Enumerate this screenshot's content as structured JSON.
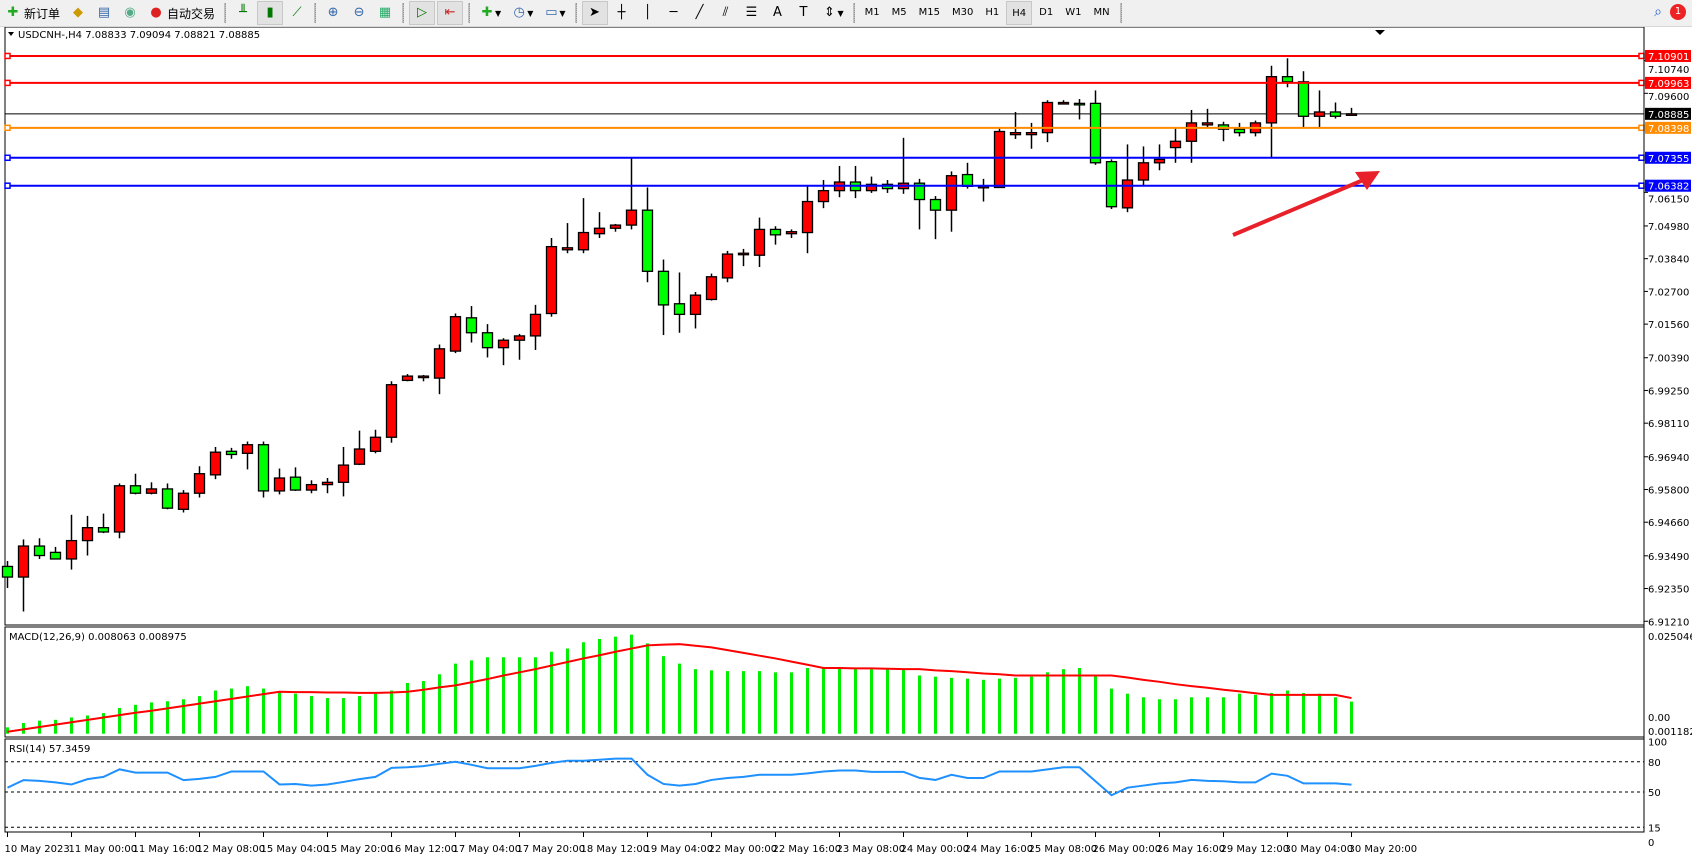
{
  "toolbar": {
    "new_order": "新订单",
    "auto_trading": "自动交易",
    "timeframes": [
      "M1",
      "M5",
      "M15",
      "M30",
      "H1",
      "H4",
      "D1",
      "W1",
      "MN"
    ],
    "active_timeframe": "H4",
    "notification_count": "1",
    "icons": [
      "new-order-icon",
      "market-watch-icon",
      "navigator-icon",
      "signals-icon",
      "auto-trading-icon",
      "bar-chart-icon",
      "candlestick-icon",
      "line-chart-icon",
      "zoom-in-icon",
      "zoom-out-icon",
      "tile-windows-icon",
      "chart-shift-icon",
      "auto-scroll-icon",
      "indicators-icon",
      "periods-icon",
      "templates-icon",
      "cursor-icon",
      "crosshair-icon",
      "vertical-line-icon",
      "horizontal-line-icon",
      "trendline-icon",
      "fibonacci-icon",
      "fibo-fan-icon",
      "text-icon",
      "text-label-icon",
      "arrows-icon",
      "search-icon",
      "chat-icon"
    ]
  },
  "chart": {
    "header": "USDCNH-,H4  7.08833 7.09094 7.08821 7.08885",
    "colors": {
      "bull": "#ff0000",
      "bear": "#00ff00",
      "resistance": "#ff0000",
      "pivot": "#ff8c00",
      "support": "#0000ff",
      "signal": "#ff0000",
      "histogram": "#00ee00",
      "rsi": "#1e90ff",
      "arrow": "#e8202a"
    },
    "price_axis_ticks": [
      "7.10740",
      "7.09600",
      "7.06150",
      "7.04980",
      "7.03840",
      "7.02700",
      "7.01560",
      "7.00390",
      "6.99250",
      "6.98110",
      "6.96940",
      "6.95800",
      "6.94660",
      "6.93490",
      "6.92350",
      "6.91210"
    ],
    "horizontal_lines": [
      {
        "price": "7.10901",
        "color": "#ff0000"
      },
      {
        "price": "7.09963",
        "color": "#ff0000"
      },
      {
        "price": "7.08398",
        "color": "#ff8c00"
      },
      {
        "price": "7.07355",
        "color": "#0000ff"
      },
      {
        "price": "7.06382",
        "color": "#0000ff"
      }
    ],
    "bid_price": "7.08885",
    "macd_label": "MACD(12,26,9) 0.008063 0.008975",
    "macd_axis": [
      "0.025046",
      "0.00",
      "0.001182"
    ],
    "rsi_label": "RSI(14) 57.3459",
    "rsi_axis": [
      "100",
      "80",
      "50",
      "15",
      "0"
    ],
    "time_labels": [
      "10 May 2023",
      "11 May 00:00",
      "11 May 16:00",
      "12 May 08:00",
      "15 May 04:00",
      "15 May 20:00",
      "16 May 12:00",
      "17 May 04:00",
      "17 May 20:00",
      "18 May 12:00",
      "19 May 04:00",
      "22 May 00:00",
      "22 May 16:00",
      "23 May 08:00",
      "24 May 00:00",
      "24 May 16:00",
      "25 May 08:00",
      "26 May 00:00",
      "26 May 16:00",
      "29 May 12:00",
      "30 May 04:00",
      "30 May 20:00"
    ]
  },
  "chart_data": {
    "type": "candlestick",
    "symbol": "USDCNH-",
    "timeframe": "H4",
    "ylim": [
      6.9108,
      7.1191
    ],
    "ohlc": [
      [
        6.9312,
        6.9331,
        6.9237,
        6.9275
      ],
      [
        6.9275,
        6.9406,
        6.9155,
        6.9383
      ],
      [
        6.9383,
        6.941,
        6.9338,
        6.935
      ],
      [
        6.9361,
        6.938,
        6.9338,
        6.9338
      ],
      [
        6.9338,
        6.9492,
        6.9301,
        6.9402
      ],
      [
        6.9402,
        6.9488,
        6.935,
        6.9447
      ],
      [
        6.9447,
        6.9496,
        6.9428,
        6.9432
      ],
      [
        6.9432,
        6.9601,
        6.941,
        6.9593
      ],
      [
        6.9593,
        6.9635,
        6.9563,
        6.9567
      ],
      [
        6.9567,
        6.9605,
        6.9563,
        6.9582
      ],
      [
        6.9582,
        6.9601,
        6.9511,
        6.9515
      ],
      [
        6.9511,
        6.9578,
        6.95,
        6.9567
      ],
      [
        6.9567,
        6.9661,
        6.9552,
        6.9635
      ],
      [
        6.9631,
        6.9728,
        6.9616,
        6.971
      ],
      [
        6.9713,
        6.9725,
        6.9687,
        6.9702
      ],
      [
        6.9706,
        6.9747,
        6.965,
        6.9736
      ],
      [
        6.9736,
        6.9747,
        6.9552,
        6.9575
      ],
      [
        6.9575,
        6.9653,
        6.9563,
        6.962
      ],
      [
        6.9623,
        6.9657,
        6.9575,
        6.9578
      ],
      [
        6.9578,
        6.9612,
        6.9567,
        6.9597
      ],
      [
        6.9597,
        6.962,
        6.9567,
        6.9605
      ],
      [
        6.9605,
        6.9728,
        6.9556,
        6.9665
      ],
      [
        6.9668,
        6.9785,
        6.9665,
        6.9721
      ],
      [
        6.9713,
        6.9788,
        6.9706,
        6.9762
      ],
      [
        6.9762,
        6.9957,
        6.9743,
        6.9945
      ],
      [
        6.996,
        6.9982,
        6.9957,
        6.9975
      ],
      [
        6.9971,
        6.9979,
        6.9957,
        6.9975
      ],
      [
        6.9968,
        7.0085,
        6.9912,
        7.007
      ],
      [
        7.0062,
        7.0193,
        7.0055,
        7.0182
      ],
      [
        7.0178,
        7.0219,
        7.0092,
        7.0126
      ],
      [
        7.0126,
        7.0156,
        7.004,
        7.0074
      ],
      [
        7.0074,
        7.0107,
        7.0013,
        7.01
      ],
      [
        7.01,
        7.0122,
        7.0032,
        7.0115
      ],
      [
        7.0115,
        7.0223,
        7.0066,
        7.019
      ],
      [
        7.0193,
        7.0456,
        7.0182,
        7.0426
      ],
      [
        7.0415,
        7.0508,
        7.0403,
        7.0422
      ],
      [
        7.0415,
        7.0595,
        7.0403,
        7.0475
      ],
      [
        7.0471,
        7.0546,
        7.0456,
        7.049
      ],
      [
        7.049,
        7.0505,
        7.0478,
        7.0501
      ],
      [
        7.0501,
        7.0733,
        7.0486,
        7.0553
      ],
      [
        7.0553,
        7.0632,
        7.0302,
        7.034
      ],
      [
        7.034,
        7.0381,
        7.0118,
        7.0223
      ],
      [
        7.0227,
        7.0336,
        7.0126,
        7.019
      ],
      [
        7.019,
        7.0268,
        7.0141,
        7.0257
      ],
      [
        7.0242,
        7.0332,
        7.0238,
        7.0321
      ],
      [
        7.0317,
        7.0411,
        7.0302,
        7.04
      ],
      [
        7.04,
        7.0418,
        7.0358,
        7.0403
      ],
      [
        7.0396,
        7.0527,
        7.0355,
        7.0486
      ],
      [
        7.0486,
        7.0497,
        7.0433,
        7.0467
      ],
      [
        7.0471,
        7.0486,
        7.0456,
        7.0478
      ],
      [
        7.0475,
        7.0636,
        7.0403,
        7.0583
      ],
      [
        7.0583,
        7.0658,
        7.056,
        7.0621
      ],
      [
        7.0621,
        7.0707,
        7.0598,
        7.0651
      ],
      [
        7.0651,
        7.0707,
        7.0595,
        7.0621
      ],
      [
        7.0621,
        7.067,
        7.0613,
        7.0643
      ],
      [
        7.0643,
        7.0658,
        7.0613,
        7.0628
      ],
      [
        7.0628,
        7.0805,
        7.061,
        7.0647
      ],
      [
        7.0647,
        7.0662,
        7.0486,
        7.059
      ],
      [
        7.059,
        7.0602,
        7.0452,
        7.0553
      ],
      [
        7.0553,
        7.0688,
        7.0478,
        7.0673
      ],
      [
        7.0677,
        7.0718,
        7.0628,
        7.0636
      ],
      [
        7.0632,
        7.0662,
        7.0583,
        7.0636
      ],
      [
        7.0632,
        7.0842,
        7.0632,
        7.0827
      ],
      [
        7.0816,
        7.0895,
        7.0801,
        7.0823
      ],
      [
        7.0816,
        7.0857,
        7.0767,
        7.0823
      ],
      [
        7.0823,
        7.0936,
        7.079,
        7.0928
      ],
      [
        7.0925,
        7.0936,
        7.0921,
        7.0928
      ],
      [
        7.0925,
        7.094,
        7.0869,
        7.0921
      ],
      [
        7.0925,
        7.097,
        7.0711,
        7.0718
      ],
      [
        7.0722,
        7.073,
        7.0557,
        7.0565
      ],
      [
        7.0561,
        7.0782,
        7.0546,
        7.0658
      ],
      [
        7.0658,
        7.0775,
        7.0636,
        7.0718
      ],
      [
        7.0718,
        7.0782,
        7.0692,
        7.073
      ],
      [
        7.0771,
        7.0838,
        7.0718,
        7.0793
      ],
      [
        7.0793,
        7.0902,
        7.0718,
        7.0857
      ],
      [
        7.085,
        7.0906,
        7.0838,
        7.0857
      ],
      [
        7.085,
        7.0861,
        7.0793,
        7.0835
      ],
      [
        7.0835,
        7.0857,
        7.081,
        7.0823
      ],
      [
        7.0823,
        7.0865,
        7.081,
        7.0857
      ],
      [
        7.0857,
        7.1056,
        7.0737,
        7.1018
      ],
      [
        7.1018,
        7.1082,
        7.0981,
        7.1
      ],
      [
        7.1,
        7.1037,
        7.0842,
        7.088
      ],
      [
        7.088,
        7.097,
        7.0842,
        7.0895
      ],
      [
        7.0895,
        7.0928,
        7.0872,
        7.088
      ],
      [
        7.08833,
        7.09094,
        7.08821,
        7.08885
      ]
    ],
    "macd": {
      "ylim": [
        0,
        0.025046
      ],
      "histogram": [
        0.0016,
        0.0027,
        0.0033,
        0.0035,
        0.0041,
        0.0046,
        0.0052,
        0.0065,
        0.0073,
        0.0079,
        0.0082,
        0.0087,
        0.0095,
        0.0109,
        0.0114,
        0.012,
        0.0114,
        0.0106,
        0.0101,
        0.0095,
        0.009,
        0.009,
        0.0095,
        0.0101,
        0.0109,
        0.0128,
        0.0133,
        0.015,
        0.0177,
        0.0185,
        0.0193,
        0.0193,
        0.0193,
        0.0193,
        0.0207,
        0.0215,
        0.0231,
        0.0239,
        0.0245,
        0.025,
        0.0228,
        0.0196,
        0.0177,
        0.0163,
        0.016,
        0.0158,
        0.0158,
        0.0158,
        0.0155,
        0.0155,
        0.0166,
        0.0166,
        0.0166,
        0.0166,
        0.0163,
        0.0163,
        0.0163,
        0.0147,
        0.0144,
        0.0141,
        0.0139,
        0.0136,
        0.0139,
        0.0141,
        0.0144,
        0.0155,
        0.0163,
        0.0166,
        0.0147,
        0.0114,
        0.0101,
        0.0092,
        0.0087,
        0.0087,
        0.0092,
        0.0092,
        0.0092,
        0.0101,
        0.0098,
        0.0103,
        0.0109,
        0.0103,
        0.0101,
        0.0092,
        0.0081
      ],
      "signal": [
        0.0005,
        0.0011,
        0.0017,
        0.0023,
        0.0029,
        0.0035,
        0.0041,
        0.0047,
        0.0053,
        0.0058,
        0.0064,
        0.007,
        0.0076,
        0.0082,
        0.0088,
        0.0094,
        0.01,
        0.0106,
        0.0105,
        0.0105,
        0.0104,
        0.0104,
        0.0103,
        0.0103,
        0.0104,
        0.0106,
        0.0111,
        0.0117,
        0.0122,
        0.013,
        0.0138,
        0.0147,
        0.0155,
        0.0163,
        0.0172,
        0.0181,
        0.019,
        0.0198,
        0.0207,
        0.0215,
        0.0223,
        0.0225,
        0.0226,
        0.0222,
        0.0218,
        0.0211,
        0.0204,
        0.0197,
        0.019,
        0.0182,
        0.0174,
        0.0166,
        0.0166,
        0.0165,
        0.0165,
        0.0164,
        0.0163,
        0.0163,
        0.016,
        0.0158,
        0.0155,
        0.0152,
        0.015,
        0.0147,
        0.0147,
        0.0147,
        0.0147,
        0.0147,
        0.0147,
        0.0147,
        0.0142,
        0.0136,
        0.0131,
        0.0125,
        0.012,
        0.0116,
        0.0111,
        0.0107,
        0.0102,
        0.0098,
        0.0098,
        0.0098,
        0.0098,
        0.0098,
        0.009
      ]
    },
    "rsi": {
      "levels": [
        80,
        50,
        15
      ],
      "values": [
        54.3,
        61.8,
        61,
        59.6,
        57.5,
        62.8,
        65,
        72.5,
        69.3,
        69.3,
        69.3,
        61.8,
        63,
        65,
        70.4,
        70.4,
        70.4,
        57.5,
        58,
        56.4,
        57.5,
        60,
        62.8,
        65,
        74,
        74.6,
        75.7,
        78,
        80,
        77,
        73.6,
        73.6,
        73.6,
        76,
        78.9,
        81.1,
        81.1,
        82,
        83.2,
        83.2,
        67.1,
        58,
        56.4,
        58,
        62,
        63.9,
        65,
        67.1,
        67.1,
        67.1,
        68.5,
        70.4,
        71.4,
        71.4,
        70,
        70,
        70,
        64,
        62,
        67.1,
        63.9,
        63.9,
        70.4,
        70.4,
        70.4,
        72.5,
        74.6,
        74.6,
        60.7,
        46.8,
        54.3,
        56.4,
        58.6,
        59.6,
        62,
        61,
        60.7,
        59.6,
        59.6,
        68.2,
        66.1,
        58.6,
        58.6,
        58.6,
        57.3
      ]
    }
  }
}
